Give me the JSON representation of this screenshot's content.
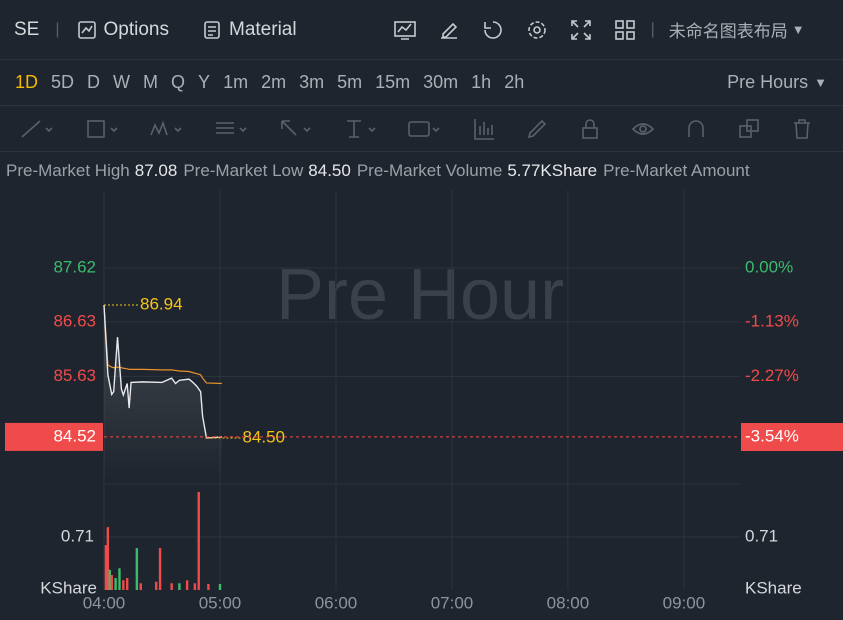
{
  "toolbar": {
    "symbol": "SE",
    "options": "Options",
    "material": "Material",
    "layout_name": "未命名图表布局",
    "timeframes": [
      "1D",
      "5D",
      "D",
      "W",
      "M",
      "Q",
      "Y",
      "1m",
      "2m",
      "3m",
      "5m",
      "15m",
      "30m",
      "1h",
      "2h"
    ],
    "active_index": 0,
    "session": "Pre Hours"
  },
  "info": [
    {
      "label": "Pre-Market High",
      "value": "87.08"
    },
    {
      "label": "Pre-Market Low",
      "value": "84.50"
    },
    {
      "label": "Pre-Market Volume",
      "value": "5.77KShare"
    },
    {
      "label": "Pre-Market Amount"
    }
  ],
  "chart_data": {
    "type": "line",
    "watermark": "Pre Hour",
    "x": [
      "04:00",
      "04:02",
      "04:04",
      "04:05",
      "04:07",
      "04:09",
      "04:10",
      "04:12",
      "04:13",
      "04:14",
      "04:20",
      "04:30",
      "04:35",
      "04:37",
      "04:39",
      "04:44",
      "04:46",
      "04:48",
      "04:50",
      "04:51",
      "04:53",
      "05:01"
    ],
    "series": [
      {
        "color": "#e6e8eb",
        "values": [
          86.94,
          85.66,
          85.3,
          85.35,
          86.35,
          85.4,
          85.29,
          85.5,
          85.05,
          85.52,
          85.53,
          85.52,
          85.6,
          85.5,
          85.56,
          85.58,
          85.52,
          85.45,
          85.35,
          84.9,
          84.5,
          84.52
        ]
      },
      {
        "color": "#e8912d",
        "values": [
          86.94,
          85.84,
          85.8,
          85.79,
          85.8,
          85.79,
          85.78,
          85.77,
          85.76,
          85.76,
          85.76,
          85.75,
          85.75,
          85.74,
          85.73,
          85.72,
          85.7,
          85.68,
          85.66,
          85.6,
          85.51,
          85.5
        ]
      }
    ],
    "annotations": [
      {
        "x": "04:00",
        "label": "86.94"
      },
      {
        "x": "04:53",
        "label": "84.50"
      }
    ],
    "annotation_color": "#f5c518",
    "xlim": [
      "04:00",
      "09:29"
    ],
    "xticks": [
      "04:00",
      "05:00",
      "06:00",
      "07:00",
      "08:00",
      "09:00"
    ],
    "ylim": [
      83.73,
      89.05
    ],
    "yticks": [
      87.62,
      86.63,
      85.63
    ],
    "y2lim": [
      -4.44,
      1.63
    ],
    "y2ticks": [
      {
        "value": 0,
        "label": "0.00%"
      },
      {
        "value": -1.13,
        "label": "-1.13%"
      },
      {
        "value": -2.27,
        "label": "-2.27%"
      }
    ],
    "last": {
      "value": 84.52,
      "change": {
        "value": -3.54,
        "label": "-3.54%"
      }
    },
    "up_color": "#3dbb6c",
    "down_color": "#f04b4b",
    "grid": true,
    "volume": {
      "unit": "KShare",
      "ylim": [
        0,
        1.47
      ],
      "yticks": [
        0.71
      ],
      "x": [
        "04:01",
        "04:02",
        "04:03",
        "04:04",
        "04:06",
        "04:08",
        "04:10",
        "04:12",
        "04:17",
        "04:19",
        "04:27",
        "04:29",
        "04:35",
        "04:39",
        "04:43",
        "04:47",
        "04:49",
        "04:54",
        "05:00"
      ],
      "values": [
        0.6,
        0.84,
        0.27,
        0.2,
        0.16,
        0.29,
        0.13,
        0.16,
        0.56,
        0.09,
        0.11,
        0.56,
        0.09,
        0.09,
        0.13,
        0.09,
        1.31,
        0.08,
        0.08
      ],
      "colors": [
        "#f04b4b",
        "#f04b4b",
        "#3dbb6c",
        "#f04b4b",
        "#3dbb6c",
        "#3dbb6c",
        "#f04b4b",
        "#f04b4b",
        "#3dbb6c",
        "#f04b4b",
        "#f04b4b",
        "#f04b4b",
        "#f04b4b",
        "#3dbb6c",
        "#f04b4b",
        "#f04b4b",
        "#f04b4b",
        "#f04b4b",
        "#3dbb6c"
      ]
    }
  }
}
